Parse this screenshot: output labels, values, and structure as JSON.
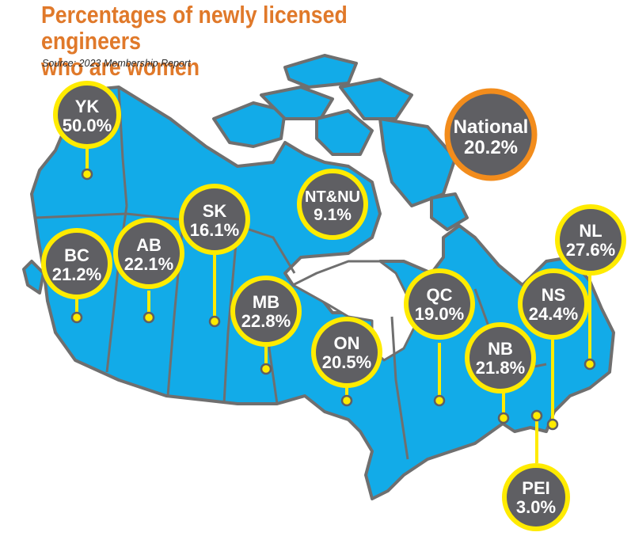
{
  "title_line1": "Percentages of newly licensed engineers",
  "title_line2": "who are women",
  "source": "Source: 2023 Membership Report",
  "colors": {
    "land": "#12abe8",
    "border": "#6f6f6f",
    "bubble": "#5f5f63",
    "ring": "#ffeb00",
    "national_ring": "#f28c1c",
    "title": "#e0792a"
  },
  "national": {
    "name": "National",
    "value": "20.2%"
  },
  "provinces": [
    {
      "code": "YK",
      "value": "50.0%"
    },
    {
      "code": "BC",
      "value": "21.2%"
    },
    {
      "code": "AB",
      "value": "22.1%"
    },
    {
      "code": "SK",
      "value": "16.1%"
    },
    {
      "code": "MB",
      "value": "22.8%"
    },
    {
      "code": "NT&NU",
      "value": "9.1%"
    },
    {
      "code": "ON",
      "value": "20.5%"
    },
    {
      "code": "QC",
      "value": "19.0%"
    },
    {
      "code": "NB",
      "value": "21.8%"
    },
    {
      "code": "NS",
      "value": "24.4%"
    },
    {
      "code": "NL",
      "value": "27.6%"
    },
    {
      "code": "PEI",
      "value": "3.0%"
    }
  ]
}
